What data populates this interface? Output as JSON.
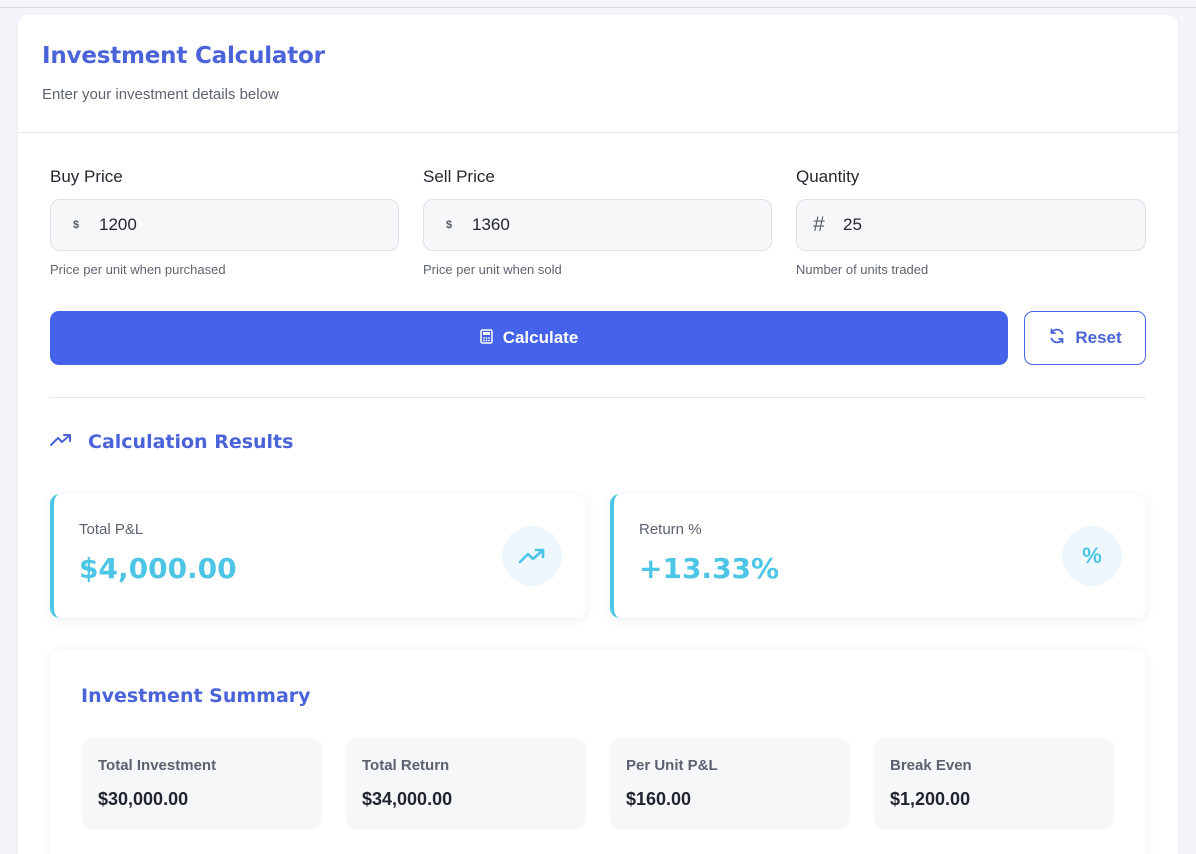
{
  "header": {
    "title": "Investment Calculator",
    "subtitle": "Enter your investment details below"
  },
  "fields": [
    {
      "label": "Buy Price",
      "prefix": "$",
      "value": "1200",
      "hint": "Price per unit when purchased",
      "icon": "dollar-icon"
    },
    {
      "label": "Sell Price",
      "prefix": "$",
      "value": "1360",
      "hint": "Price per unit when sold",
      "icon": "dollar-icon"
    },
    {
      "label": "Quantity",
      "prefix": "#",
      "value": "25",
      "hint": "Number of units traded",
      "icon": "hash-icon"
    }
  ],
  "actions": {
    "calculate_label": "Calculate",
    "calculate_icon": "calculator-icon",
    "reset_label": "Reset",
    "reset_icon": "refresh-icon"
  },
  "results": {
    "title": "Calculation Results",
    "title_icon": "trending-up-icon",
    "cards": [
      {
        "label": "Total P&L",
        "value": "$4,000.00",
        "icon": "trending-up-icon"
      },
      {
        "label": "Return %",
        "value": "+13.33%",
        "icon": "percent-icon",
        "icon_text": "%"
      }
    ]
  },
  "summary": {
    "title": "Investment Summary",
    "items": [
      {
        "label": "Total Investment",
        "value": "$30,000.00"
      },
      {
        "label": "Total Return",
        "value": "$34,000.00"
      },
      {
        "label": "Per Unit P&L",
        "value": "$160.00"
      },
      {
        "label": "Break Even",
        "value": "$1,200.00"
      }
    ]
  },
  "colors": {
    "primary": "#4563ea",
    "heading": "#4b63d8",
    "accent": "#4cc5e6",
    "background": "#f3f5fb"
  }
}
